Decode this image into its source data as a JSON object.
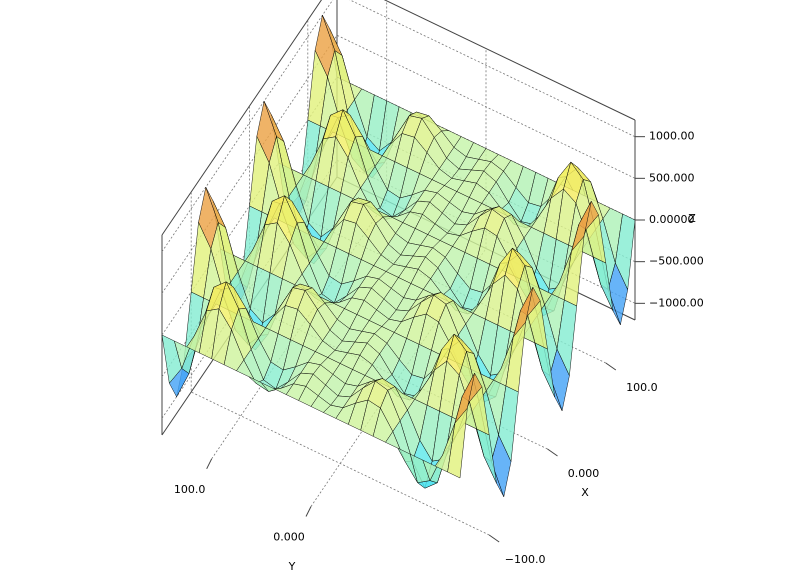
{
  "chart_data": {
    "type": "surface",
    "xlabel": "X",
    "ylabel": "Y",
    "zlabel": "Z",
    "xlim": [
      -150,
      150
    ],
    "ylim": [
      -150,
      150
    ],
    "zlim": [
      -1200,
      1200
    ],
    "xticks": [
      {
        "value": -100,
        "label": "−100.0"
      },
      {
        "value": 0,
        "label": "0.000"
      },
      {
        "value": 100,
        "label": "100.0"
      }
    ],
    "yticks": [
      {
        "value": 100,
        "label": "100.0"
      },
      {
        "value": 0,
        "label": "0.000"
      }
    ],
    "zticks": [
      {
        "value": 1000,
        "label": "1000.00"
      },
      {
        "value": 500,
        "label": "500.000"
      },
      {
        "value": 0,
        "label": "0.00000"
      },
      {
        "value": -500,
        "label": "−500.000"
      },
      {
        "value": -1000,
        "label": "−1000.00"
      }
    ],
    "grid": true,
    "colormap": [
      "#2f40ff",
      "#55e8f0",
      "#c8f4a8",
      "#f4f060",
      "#e03020"
    ],
    "x": [
      -150,
      -137.5,
      -125,
      -112.5,
      -100,
      -87.5,
      -75,
      -62.5,
      -50,
      -37.5,
      -25,
      -12.5,
      0,
      12.5,
      25,
      37.5,
      50,
      62.5,
      75,
      87.5,
      100,
      112.5,
      125,
      137.5,
      150
    ],
    "y": [
      -150,
      -137.5,
      -125,
      -112.5,
      -100,
      -87.5,
      -75,
      -62.5,
      -50,
      -37.5,
      -25,
      -12.5,
      0,
      12.5,
      25,
      37.5,
      50,
      62.5,
      75,
      87.5,
      100,
      112.5,
      125,
      137.5,
      150
    ],
    "z": [
      [
        0,
        707,
        1000,
        707,
        0,
        -707,
        -1000,
        -707,
        0,
        707,
        1000,
        707,
        0,
        -707,
        -1000,
        -707,
        0,
        707,
        1000,
        707,
        0,
        -707,
        -1000,
        -707,
        0
      ],
      [
        0,
        458,
        648,
        458,
        0,
        -458,
        -648,
        -458,
        0,
        458,
        648,
        458,
        0,
        -458,
        -648,
        -458,
        0,
        458,
        648,
        458,
        0,
        -458,
        -648,
        -458,
        0
      ],
      [
        0,
        0,
        0,
        0,
        0,
        0,
        0,
        0,
        0,
        0,
        0,
        0,
        0,
        0,
        0,
        0,
        0,
        0,
        0,
        0,
        0,
        0,
        0,
        0,
        0
      ],
      [
        0,
        -375,
        -530,
        -375,
        0,
        375,
        530,
        375,
        0,
        -375,
        -530,
        -375,
        0,
        375,
        530,
        375,
        0,
        -375,
        -530,
        -375,
        0,
        375,
        530,
        375,
        0
      ],
      [
        0,
        -472,
        -667,
        -472,
        0,
        472,
        667,
        472,
        0,
        -472,
        -667,
        -472,
        0,
        472,
        667,
        472,
        0,
        -472,
        -667,
        -472,
        0,
        472,
        667,
        472,
        0
      ],
      [
        0,
        -291,
        -412,
        -291,
        0,
        291,
        412,
        291,
        0,
        -291,
        -412,
        -291,
        0,
        291,
        412,
        291,
        0,
        -291,
        -412,
        -291,
        0,
        291,
        412,
        291,
        0
      ],
      [
        0,
        0,
        0,
        0,
        0,
        0,
        0,
        0,
        0,
        0,
        0,
        0,
        0,
        0,
        0,
        0,
        0,
        0,
        0,
        0,
        0,
        0,
        0,
        0,
        0
      ],
      [
        0,
        209,
        295,
        209,
        0,
        -209,
        -295,
        -209,
        0,
        209,
        295,
        209,
        0,
        -209,
        -295,
        -209,
        0,
        209,
        295,
        209,
        0,
        -209,
        -295,
        -209,
        0
      ],
      [
        0,
        235,
        333,
        235,
        0,
        -235,
        -333,
        -235,
        0,
        235,
        333,
        235,
        0,
        -235,
        -333,
        -235,
        0,
        235,
        333,
        235,
        0,
        -235,
        -333,
        -235,
        0
      ],
      [
        0,
        125,
        177,
        125,
        0,
        -125,
        -177,
        -125,
        0,
        125,
        177,
        125,
        0,
        -125,
        -177,
        -125,
        0,
        125,
        177,
        125,
        0,
        -125,
        -177,
        -125,
        0
      ],
      [
        0,
        0,
        0,
        0,
        0,
        0,
        0,
        0,
        0,
        0,
        0,
        0,
        0,
        0,
        0,
        0,
        0,
        0,
        0,
        0,
        0,
        0,
        0,
        0,
        0
      ],
      [
        0,
        -42,
        -59,
        -42,
        0,
        42,
        59,
        42,
        0,
        -42,
        -59,
        -42,
        0,
        42,
        59,
        42,
        0,
        -42,
        -59,
        -42,
        0,
        42,
        59,
        42,
        0
      ],
      [
        0,
        0,
        0,
        0,
        0,
        0,
        0,
        0,
        0,
        0,
        0,
        0,
        0,
        0,
        0,
        0,
        0,
        0,
        0,
        0,
        0,
        0,
        0,
        0,
        0
      ],
      [
        0,
        42,
        59,
        42,
        0,
        -42,
        -59,
        -42,
        0,
        42,
        59,
        42,
        0,
        -42,
        -59,
        -42,
        0,
        42,
        59,
        42,
        0,
        -42,
        -59,
        -42,
        0
      ],
      [
        0,
        0,
        0,
        0,
        0,
        0,
        0,
        0,
        0,
        0,
        0,
        0,
        0,
        0,
        0,
        0,
        0,
        0,
        0,
        0,
        0,
        0,
        0,
        0,
        0
      ],
      [
        0,
        -125,
        -177,
        -125,
        0,
        125,
        177,
        125,
        0,
        -125,
        -177,
        -125,
        0,
        125,
        177,
        125,
        0,
        -125,
        -177,
        -125,
        0,
        125,
        177,
        125,
        0
      ],
      [
        0,
        -235,
        -333,
        -235,
        0,
        235,
        333,
        235,
        0,
        -235,
        -333,
        -235,
        0,
        235,
        333,
        235,
        0,
        -235,
        -333,
        -235,
        0,
        235,
        333,
        235,
        0
      ],
      [
        0,
        -209,
        -295,
        -209,
        0,
        209,
        295,
        209,
        0,
        -209,
        -295,
        -209,
        0,
        209,
        295,
        209,
        0,
        -209,
        -295,
        -209,
        0,
        209,
        295,
        209,
        0
      ],
      [
        0,
        0,
        0,
        0,
        0,
        0,
        0,
        0,
        0,
        0,
        0,
        0,
        0,
        0,
        0,
        0,
        0,
        0,
        0,
        0,
        0,
        0,
        0,
        0,
        0
      ],
      [
        0,
        291,
        412,
        291,
        0,
        -291,
        -412,
        -291,
        0,
        291,
        412,
        291,
        0,
        -291,
        -412,
        -291,
        0,
        291,
        412,
        291,
        0,
        -291,
        -412,
        -291,
        0
      ],
      [
        0,
        472,
        667,
        472,
        0,
        -472,
        -667,
        -472,
        0,
        472,
        667,
        472,
        0,
        -472,
        -667,
        -472,
        0,
        472,
        667,
        472,
        0,
        -472,
        -667,
        -472,
        0
      ],
      [
        0,
        375,
        530,
        375,
        0,
        -375,
        -530,
        -375,
        0,
        375,
        530,
        375,
        0,
        -375,
        -530,
        -375,
        0,
        375,
        530,
        375,
        0,
        -375,
        -530,
        -375,
        0
      ],
      [
        0,
        0,
        0,
        0,
        0,
        0,
        0,
        0,
        0,
        0,
        0,
        0,
        0,
        0,
        0,
        0,
        0,
        0,
        0,
        0,
        0,
        0,
        0,
        0,
        0
      ],
      [
        0,
        -458,
        -648,
        -458,
        0,
        458,
        648,
        458,
        0,
        -458,
        -648,
        -458,
        0,
        458,
        648,
        458,
        0,
        -458,
        -648,
        -458,
        0,
        458,
        648,
        458,
        0
      ],
      [
        0,
        -707,
        -1000,
        -707,
        0,
        707,
        1000,
        707,
        0,
        -707,
        -1000,
        -707,
        0,
        707,
        1000,
        707,
        0,
        -707,
        -1000,
        -707,
        0,
        707,
        1000,
        707,
        0
      ]
    ]
  }
}
